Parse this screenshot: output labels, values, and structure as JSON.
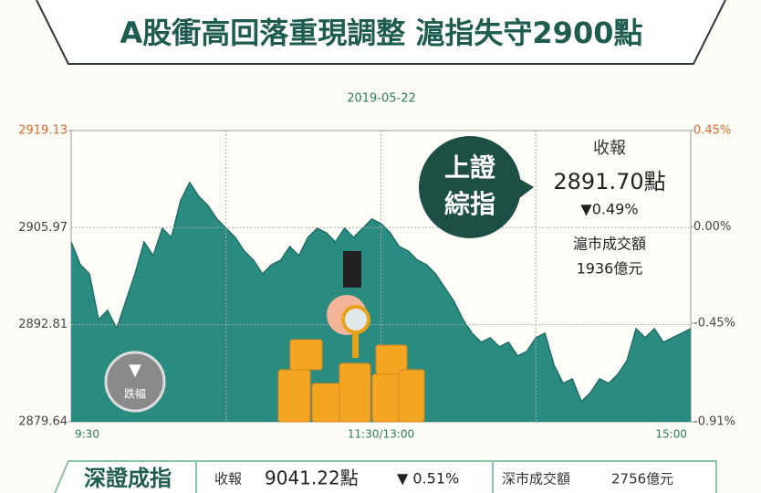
{
  "header": {
    "title": "A股衝高回落重現調整  滬指失守2900點",
    "date": "2019-05-22"
  },
  "chart_data": {
    "type": "area",
    "color": "#2a8b80",
    "categories": [
      "9:30",
      null,
      null,
      null,
      null,
      null,
      null,
      null,
      null,
      null,
      null,
      null,
      null,
      null,
      null,
      null,
      null,
      null,
      null,
      null,
      null,
      null,
      null,
      null,
      null,
      null,
      null,
      null,
      null,
      null,
      null,
      null,
      null,
      null,
      "11:30/13:00",
      null,
      null,
      null,
      null,
      null,
      null,
      null,
      null,
      null,
      null,
      null,
      null,
      null,
      null,
      null,
      null,
      null,
      null,
      null,
      null,
      null,
      null,
      null,
      null,
      null,
      null,
      null,
      null,
      null,
      null,
      null,
      null,
      null,
      "15:00"
    ],
    "values": [
      2904.03,
      2900.94,
      2899.7,
      2893.51,
      2894.75,
      2892.27,
      2895.99,
      2899.7,
      2904.03,
      2902.17,
      2905.89,
      2904.65,
      2909.6,
      2912.08,
      2910.22,
      2908.98,
      2907.13,
      2905.89,
      2904.65,
      2902.79,
      2901.56,
      2899.7,
      2900.94,
      2901.56,
      2903.41,
      2902.17,
      2904.65,
      2905.89,
      2905.27,
      2904.03,
      2905.89,
      2904.65,
      2905.89,
      2907.13,
      2906.51,
      2905.27,
      2903.41,
      2902.79,
      2901.56,
      2900.94,
      2899.7,
      2897.84,
      2895.99,
      2893.51,
      2891.65,
      2890.42,
      2891.04,
      2889.8,
      2890.42,
      2888.56,
      2889.18,
      2891.04,
      2891.65,
      2887.32,
      2884.85,
      2885.47,
      2882.37,
      2883.61,
      2885.47,
      2884.85,
      2886.09,
      2887.94,
      2892.27,
      2891.04,
      2892.27,
      2890.42,
      2891.04,
      2891.65,
      2892.27
    ],
    "ylim": [
      2879.64,
      2919.13
    ],
    "yticks": [
      2919.13,
      2905.97,
      2892.81,
      2879.64
    ],
    "y2lim": [
      -0.91,
      0.45
    ],
    "y2ticks": [
      {
        "value": 0.45,
        "label": "0.45%"
      },
      {
        "value": 0.0,
        "label": "0.00%"
      },
      {
        "value": -0.45,
        "label": "-0.45%"
      },
      {
        "value": -0.91,
        "label": "-0.91%"
      }
    ],
    "grid": true
  },
  "panel": {
    "index_name_1": "上證",
    "index_name_2": "綜指",
    "close_label": "收報",
    "close": "2891.70點",
    "change": "▼0.49%",
    "volume_label": "滬市成交額",
    "volume": "1936億元"
  },
  "badge": {
    "arrow": "▼",
    "label": "跌幅"
  },
  "bottom": {
    "index_name": "深證成指",
    "close_label": "收報",
    "close": "9041.22點",
    "change": "▼ 0.51%",
    "volume_label": "深市成交額",
    "volume": "2756億元"
  }
}
